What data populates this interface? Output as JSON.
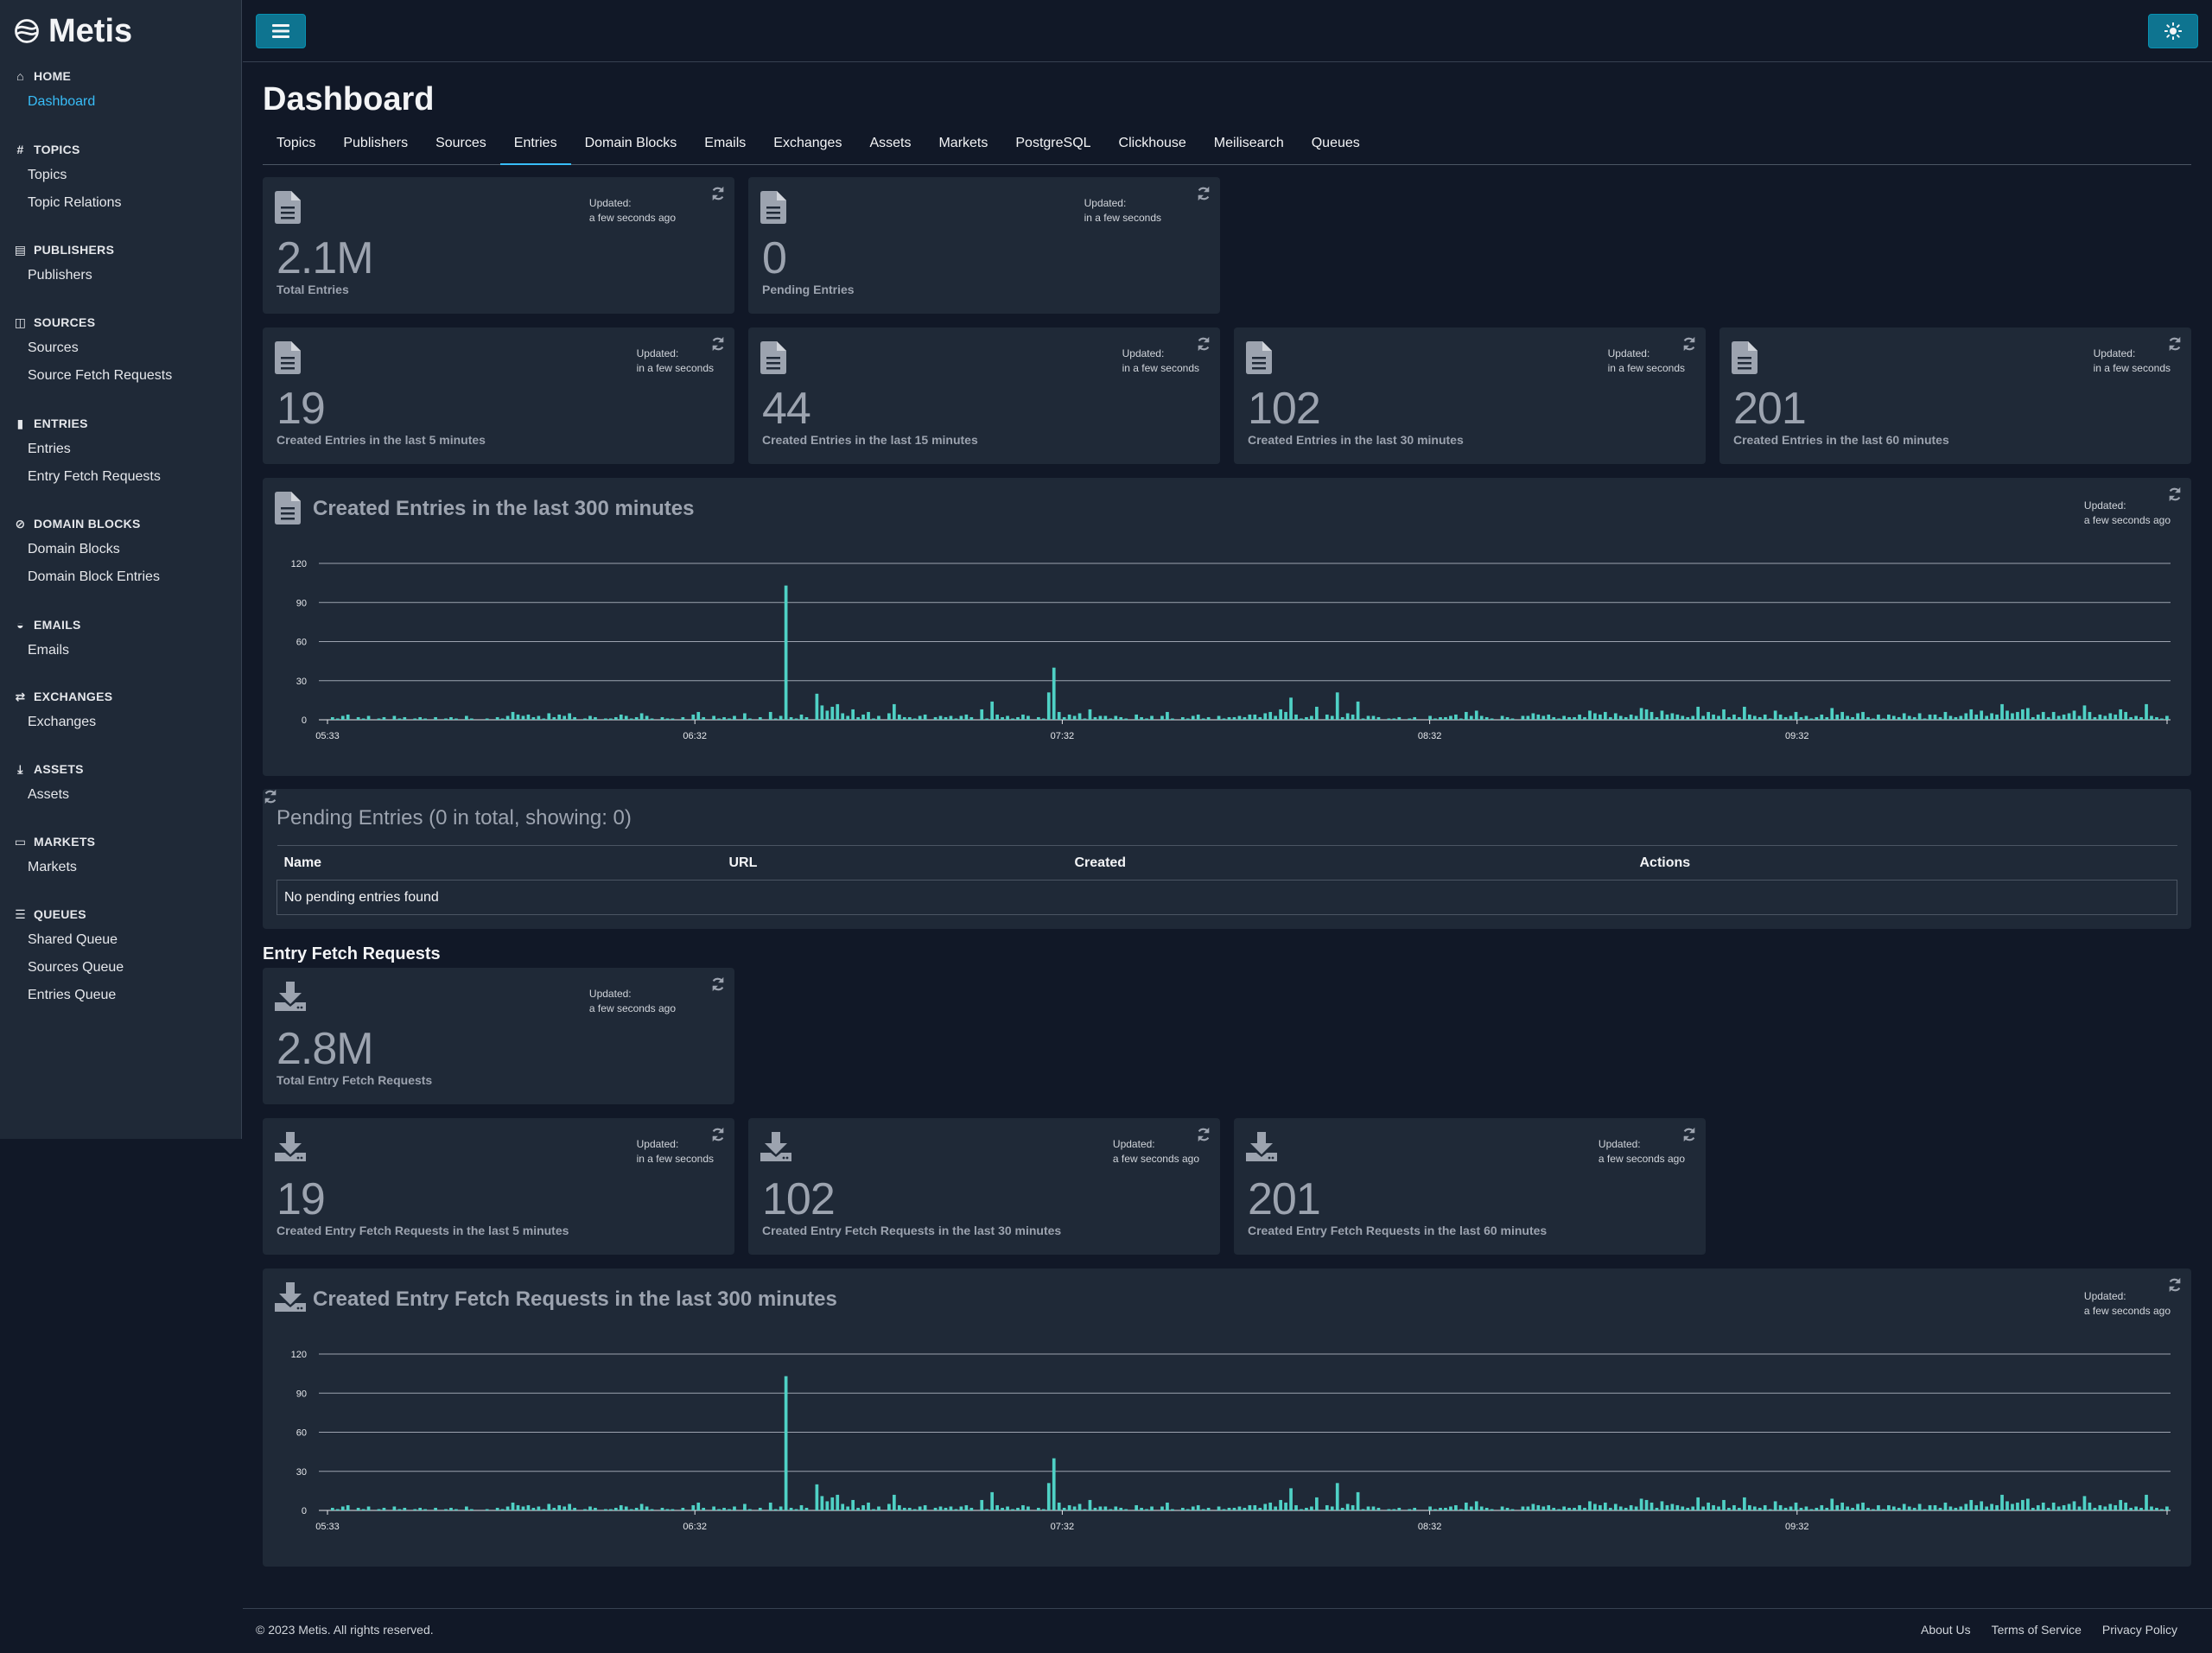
{
  "app": {
    "name": "Metis"
  },
  "sidebar": {
    "sections": [
      {
        "title": "HOME",
        "icon": "home-icon",
        "items": [
          "Dashboard"
        ]
      },
      {
        "title": "TOPICS",
        "icon": "hash-icon",
        "items": [
          "Topics",
          "Topic Relations"
        ]
      },
      {
        "title": "PUBLISHERS",
        "icon": "newspaper-icon",
        "items": [
          "Publishers"
        ]
      },
      {
        "title": "SOURCES",
        "icon": "rss-icon",
        "items": [
          "Sources",
          "Source Fetch Requests"
        ]
      },
      {
        "title": "ENTRIES",
        "icon": "file-icon",
        "items": [
          "Entries",
          "Entry Fetch Requests"
        ]
      },
      {
        "title": "DOMAIN BLOCKS",
        "icon": "ban-icon",
        "items": [
          "Domain Blocks",
          "Domain Block Entries"
        ]
      },
      {
        "title": "EMAILS",
        "icon": "inbox-icon",
        "items": [
          "Emails"
        ]
      },
      {
        "title": "EXCHANGES",
        "icon": "exchange-icon",
        "items": [
          "Exchanges"
        ]
      },
      {
        "title": "ASSETS",
        "icon": "download-icon",
        "items": [
          "Assets"
        ]
      },
      {
        "title": "MARKETS",
        "icon": "store-icon",
        "items": [
          "Markets"
        ]
      },
      {
        "title": "QUEUES",
        "icon": "list-icon",
        "items": [
          "Shared Queue",
          "Sources Queue",
          "Entries Queue"
        ]
      }
    ],
    "active_item": "Dashboard"
  },
  "page": {
    "title": "Dashboard"
  },
  "tabs": {
    "items": [
      "Topics",
      "Publishers",
      "Sources",
      "Entries",
      "Domain Blocks",
      "Emails",
      "Exchanges",
      "Assets",
      "Markets",
      "PostgreSQL",
      "Clickhouse",
      "Meilisearch",
      "Queues"
    ],
    "active": "Entries"
  },
  "entries": {
    "total": {
      "updated_label": "Updated:",
      "updated": "a few seconds ago",
      "value": "2.1M",
      "label": "Total Entries"
    },
    "pending": {
      "updated_label": "Updated:",
      "updated": "in a few seconds",
      "value": "0",
      "label": "Pending Entries"
    },
    "recent": [
      {
        "updated_label": "Updated:",
        "updated": "in a few seconds",
        "value": "19",
        "label": "Created Entries in the last 5 minutes"
      },
      {
        "updated_label": "Updated:",
        "updated": "in a few seconds",
        "value": "44",
        "label": "Created Entries in the last 15 minutes"
      },
      {
        "updated_label": "Updated:",
        "updated": "in a few seconds",
        "value": "102",
        "label": "Created Entries in the last 30 minutes"
      },
      {
        "updated_label": "Updated:",
        "updated": "in a few seconds",
        "value": "201",
        "label": "Created Entries in the last 60 minutes"
      }
    ],
    "chart": {
      "title": "Created Entries in the last 300 minutes",
      "updated_label": "Updated:",
      "updated": "a few seconds ago"
    }
  },
  "pending_table": {
    "title": "Pending Entries (0 in total, showing: 0)",
    "columns": [
      "Name",
      "URL",
      "Created",
      "Actions"
    ],
    "empty_text": "No pending entries found"
  },
  "entry_fetch_requests": {
    "heading": "Entry Fetch Requests",
    "total": {
      "updated_label": "Updated:",
      "updated": "a few seconds ago",
      "value": "2.8M",
      "label": "Total Entry Fetch Requests"
    },
    "recent": [
      {
        "updated_label": "Updated:",
        "updated": "in a few seconds",
        "value": "19",
        "label": "Created Entry Fetch Requests in the last 5 minutes"
      },
      {
        "updated_label": "Updated:",
        "updated": "a few seconds ago",
        "value": "102",
        "label": "Created Entry Fetch Requests in the last 30 minutes"
      },
      {
        "updated_label": "Updated:",
        "updated": "a few seconds ago",
        "value": "201",
        "label": "Created Entry Fetch Requests in the last 60 minutes"
      }
    ],
    "chart": {
      "title": "Created Entry Fetch Requests in the last 300 minutes",
      "updated_label": "Updated:",
      "updated": "a few seconds ago"
    }
  },
  "chart_data": [
    {
      "type": "bar",
      "title": "Created Entries in the last 300 minutes",
      "ylim": [
        0,
        120
      ],
      "yticks": [
        0,
        30,
        60,
        90,
        120
      ],
      "xticks": [
        "05:33",
        "06:32",
        "07:32",
        "08:32",
        "09:32"
      ],
      "color": "#4fd1c5",
      "values": [
        0,
        2,
        1,
        3,
        4,
        0,
        2,
        1,
        3,
        0,
        1,
        2,
        0,
        3,
        1,
        2,
        0,
        1,
        2,
        1,
        0,
        2,
        0,
        1,
        2,
        1,
        0,
        3,
        1,
        0,
        0,
        1,
        0,
        2,
        1,
        3,
        6,
        4,
        3,
        4,
        2,
        3,
        1,
        5,
        2,
        4,
        3,
        5,
        2,
        0,
        1,
        3,
        2,
        0,
        1,
        1,
        2,
        4,
        3,
        1,
        2,
        5,
        3,
        1,
        0,
        2,
        1,
        1,
        0,
        2,
        0,
        4,
        6,
        2,
        0,
        3,
        1,
        2,
        1,
        3,
        0,
        5,
        1,
        0,
        2,
        0,
        6,
        1,
        3,
        103,
        2,
        1,
        4,
        2,
        0,
        20,
        11,
        7,
        10,
        12,
        5,
        3,
        8,
        2,
        4,
        6,
        1,
        3,
        0,
        5,
        12,
        4,
        2,
        2,
        1,
        3,
        4,
        0,
        2,
        3,
        2,
        3,
        1,
        3,
        4,
        2,
        0,
        8,
        1,
        14,
        4,
        2,
        3,
        1,
        2,
        4,
        3,
        0,
        2,
        1,
        21,
        40,
        6,
        2,
        4,
        3,
        5,
        1,
        8,
        2,
        3,
        3,
        1,
        3,
        2,
        1,
        0,
        4,
        2,
        1,
        3,
        0,
        3,
        6,
        1,
        0,
        2,
        1,
        3,
        4,
        1,
        2,
        0,
        3,
        1,
        2,
        2,
        3,
        2,
        4,
        4,
        2,
        5,
        6,
        3,
        8,
        6,
        17,
        4,
        1,
        2,
        3,
        10,
        0,
        4,
        3,
        21,
        2,
        5,
        4,
        14,
        1,
        3,
        3,
        2,
        0,
        1,
        1,
        2,
        0,
        1,
        2,
        0,
        0,
        3,
        1,
        2,
        2,
        3,
        4,
        1,
        6,
        3,
        7,
        3,
        2,
        1,
        0,
        3,
        2,
        1,
        0,
        3,
        3,
        5,
        4,
        3,
        4,
        2,
        1,
        3,
        2,
        2,
        4,
        2,
        7,
        5,
        4,
        6,
        2,
        5,
        3,
        2,
        4,
        3,
        9,
        8,
        6,
        2,
        7,
        4,
        5,
        4,
        3,
        2,
        3,
        10,
        3,
        6,
        4,
        3,
        8,
        2,
        4,
        2,
        10,
        4,
        3,
        2,
        4,
        1,
        7,
        4,
        2,
        3,
        6,
        2,
        3,
        1,
        2,
        4,
        2,
        9,
        4,
        6,
        3,
        2,
        5,
        6,
        2,
        1,
        4,
        1,
        4,
        3,
        2,
        5,
        3,
        2,
        5,
        1,
        4,
        4,
        2,
        6,
        3,
        2,
        3,
        5,
        8,
        4,
        7,
        3,
        5,
        4,
        12,
        7,
        5,
        6,
        8,
        9,
        2,
        4,
        6,
        2,
        6,
        3,
        4,
        5,
        7,
        3,
        11,
        6,
        2,
        4,
        3,
        5,
        4,
        8,
        6,
        2,
        3,
        2,
        12,
        3,
        2,
        1,
        3
      ]
    },
    {
      "type": "bar",
      "title": "Created Entry Fetch Requests in the last 300 minutes",
      "ylim": [
        0,
        120
      ],
      "yticks": [
        0,
        30,
        60,
        90,
        120
      ],
      "xticks": [
        "05:33",
        "06:32",
        "07:32",
        "08:32",
        "09:32"
      ],
      "color": "#4fd1c5",
      "values": "same_as_entries"
    }
  ],
  "footer": {
    "copyright": "© 2023 Metis. All rights reserved.",
    "links": [
      "About Us",
      "Terms of Service",
      "Privacy Policy"
    ]
  }
}
